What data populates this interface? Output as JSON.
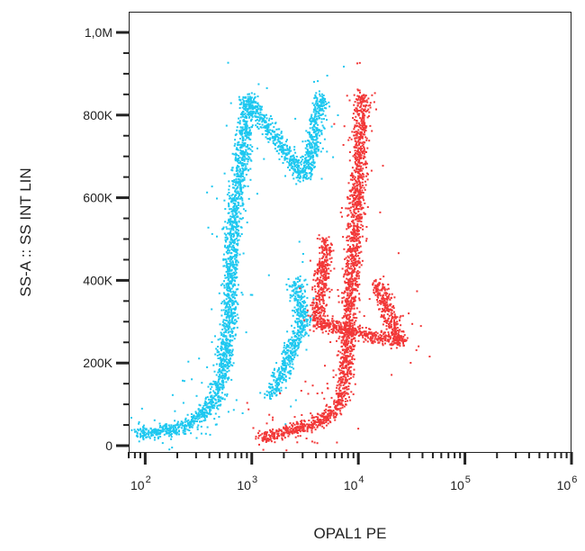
{
  "chart_data": {
    "type": "scatter",
    "title": "",
    "xlabel": "OPAL1 PE",
    "ylabel": "SS-A :: SS INT LIN",
    "x_scale": "log",
    "xlim": [
      70,
      1000000
    ],
    "ylim": [
      0,
      1000000
    ],
    "x_ticks": [
      {
        "value": 100,
        "base": "10",
        "exp": "2"
      },
      {
        "value": 1000,
        "base": "10",
        "exp": "3"
      },
      {
        "value": 10000,
        "base": "10",
        "exp": "4"
      },
      {
        "value": 100000,
        "base": "10",
        "exp": "5"
      },
      {
        "value": 1000000,
        "base": "10",
        "exp": "6"
      }
    ],
    "y_ticks": [
      {
        "value": 0,
        "label": "0"
      },
      {
        "value": 200000,
        "label": "200K"
      },
      {
        "value": 400000,
        "label": "400K"
      },
      {
        "value": 600000,
        "label": "600K"
      },
      {
        "value": 800000,
        "label": "800K"
      },
      {
        "value": 1000000,
        "label": "1,0M"
      }
    ],
    "grid": false,
    "legend": "none",
    "series": [
      {
        "color": "#1ec8f0",
        "points": [
          [
            80,
            30000
          ],
          [
            120,
            35000
          ],
          [
            150,
            40000
          ],
          [
            200,
            45000
          ],
          [
            250,
            55000
          ],
          [
            300,
            70000
          ],
          [
            350,
            85000
          ],
          [
            400,
            100000
          ],
          [
            450,
            120000
          ],
          [
            500,
            150000
          ],
          [
            550,
            200000
          ],
          [
            600,
            300000
          ],
          [
            620,
            400000
          ],
          [
            650,
            500000
          ],
          [
            700,
            600000
          ],
          [
            800,
            700000
          ],
          [
            850,
            780000
          ],
          [
            900,
            840000
          ],
          [
            3000,
            650000
          ],
          [
            3500,
            700000
          ],
          [
            4000,
            780000
          ],
          [
            4500,
            850000
          ],
          [
            2500,
            400000
          ],
          [
            3000,
            300000
          ],
          [
            1500,
            120000
          ]
        ]
      },
      {
        "color": "#f23838",
        "points": [
          [
            1200,
            20000
          ],
          [
            2000,
            35000
          ],
          [
            3000,
            45000
          ],
          [
            4000,
            60000
          ],
          [
            5000,
            70000
          ],
          [
            6000,
            90000
          ],
          [
            7000,
            120000
          ],
          [
            7500,
            200000
          ],
          [
            8000,
            300000
          ],
          [
            8500,
            400000
          ],
          [
            9000,
            500000
          ],
          [
            9500,
            600000
          ],
          [
            10000,
            700000
          ],
          [
            10500,
            780000
          ],
          [
            11000,
            850000
          ],
          [
            15000,
            400000
          ],
          [
            20000,
            300000
          ],
          [
            25000,
            250000
          ],
          [
            4000,
            300000
          ],
          [
            5000,
            500000
          ]
        ]
      }
    ]
  }
}
